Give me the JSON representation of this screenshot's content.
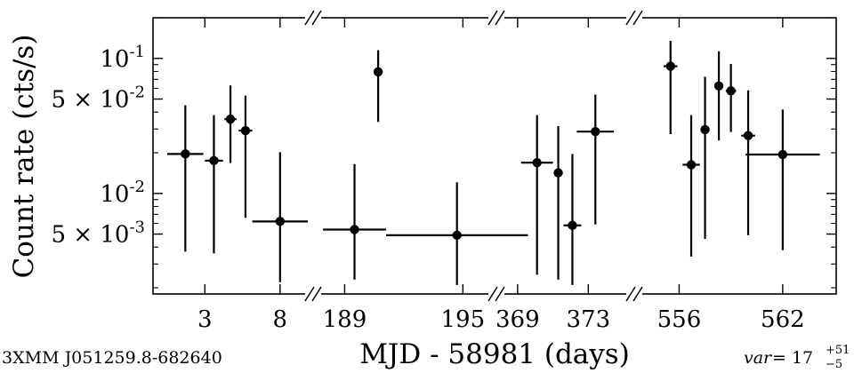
{
  "chart_data": {
    "type": "scatter",
    "xlabel": "MJD - 58981 (days)",
    "ylabel": "Count rate (cts/s)",
    "yscale": "log",
    "ylim": [
      0.0018,
      0.2
    ],
    "yticks": [
      {
        "value": 0.1,
        "label": "10^{-1}"
      },
      {
        "value": 0.05,
        "label": "5 × 10^{-2}"
      },
      {
        "value": 0.01,
        "label": "10^{-2}"
      },
      {
        "value": 0.005,
        "label": "5 × 10^{-3}"
      }
    ],
    "broken_axis": true,
    "segments": [
      {
        "xlim": [
          -0.45,
          10.2
        ],
        "ticks": [
          3,
          8
        ]
      },
      {
        "xlim": [
          187.4,
          196.7
        ],
        "ticks": [
          189,
          195
        ]
      },
      {
        "xlim": [
          367.8,
          375.6
        ],
        "ticks": [
          369,
          373
        ]
      },
      {
        "xlim": [
          553.4,
          565.1
        ],
        "ticks": [
          556,
          562
        ]
      }
    ],
    "series": [
      {
        "points": [
          {
            "x": 1.7,
            "y": 0.0196,
            "xerr": 1.2,
            "ylo": 0.0037,
            "yhi": 0.045
          },
          {
            "x": 3.6,
            "y": 0.0175,
            "xerr": 0.6,
            "ylo": 0.0036,
            "yhi": 0.038
          },
          {
            "x": 4.7,
            "y": 0.0355,
            "xerr": 0.4,
            "ylo": 0.0168,
            "yhi": 0.063
          },
          {
            "x": 5.7,
            "y": 0.0292,
            "xerr": 0.45,
            "ylo": 0.0066,
            "yhi": 0.053
          },
          {
            "x": 8.0,
            "y": 0.0062,
            "xerr": 1.85,
            "ylo": 0.0022,
            "yhi": 0.0202
          },
          {
            "x": 189.5,
            "y": 0.0054,
            "xerr": 1.6,
            "ylo": 0.0023,
            "yhi": 0.0165
          },
          {
            "x": 190.7,
            "y": 0.0795,
            "xerr": 0.0,
            "ylo": 0.0338,
            "yhi": 0.115
          },
          {
            "x": 194.7,
            "y": 0.0049,
            "xerr": 3.6,
            "ylo": 0.0021,
            "yhi": 0.0121
          },
          {
            "x": 370.1,
            "y": 0.0169,
            "xerr": 0.9,
            "ylo": 0.0025,
            "yhi": 0.038
          },
          {
            "x": 371.3,
            "y": 0.0142,
            "xerr": 0.0,
            "ylo": 0.0023,
            "yhi": 0.0315
          },
          {
            "x": 372.1,
            "y": 0.0058,
            "xerr": 0.5,
            "ylo": 0.0021,
            "yhi": 0.0196
          },
          {
            "x": 373.4,
            "y": 0.0287,
            "xerr": 1.05,
            "ylo": 0.0059,
            "yhi": 0.054
          },
          {
            "x": 555.5,
            "y": 0.0875,
            "xerr": 0.4,
            "ylo": 0.0275,
            "yhi": 0.135
          },
          {
            "x": 556.7,
            "y": 0.0163,
            "xerr": 0.5,
            "ylo": 0.0034,
            "yhi": 0.038
          },
          {
            "x": 557.5,
            "y": 0.0297,
            "xerr": 0.0,
            "ylo": 0.0046,
            "yhi": 0.073
          },
          {
            "x": 558.3,
            "y": 0.0625,
            "xerr": 0.0,
            "ylo": 0.0247,
            "yhi": 0.113
          },
          {
            "x": 559.0,
            "y": 0.0575,
            "xerr": 0.3,
            "ylo": 0.0285,
            "yhi": 0.091
          },
          {
            "x": 560.0,
            "y": 0.0268,
            "xerr": 0.4,
            "ylo": 0.0049,
            "yhi": 0.058
          },
          {
            "x": 562.0,
            "y": 0.0194,
            "xerr": 2.15,
            "ylo": 0.0038,
            "yhi": 0.0418
          }
        ]
      }
    ],
    "annotations": {
      "source": "3XMM J051259.8-682640",
      "var_label": "var",
      "var_value": "= 17",
      "var_plus": "+51",
      "var_minus": "−5"
    }
  }
}
